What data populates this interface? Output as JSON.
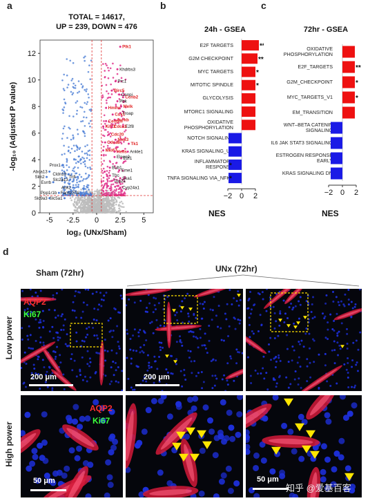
{
  "panels": {
    "a": {
      "letter": "a"
    },
    "b": {
      "letter": "b"
    },
    "c": {
      "letter": "c"
    },
    "d": {
      "letter": "d"
    }
  },
  "volcano": {
    "title_line1": "TOTAL = 14617,",
    "title_line2": "UP = 239, DOWN = 476",
    "xlabel": "log₂ (UNx/Sham)",
    "ylabel": "-log₁₀ (Adjusted P value)",
    "x_ticks": [
      "-5",
      "-2.5",
      "0",
      "2.5",
      "5"
    ],
    "y_ticks": [
      "0",
      "2",
      "4",
      "6",
      "8",
      "10",
      "12"
    ],
    "up_genes": [
      "Plk1",
      "Birc5",
      "Ccnb2",
      "Melk",
      "Hmmr",
      "Cdk1",
      "Aurkb",
      "Cenpm",
      "Kif22",
      "Cdca3",
      "Cdc20",
      "Mxd3",
      "Cdca8",
      "Mki67",
      "Hells",
      "Tk1"
    ],
    "other_genes": [
      "Khdrbs3",
      "Prc1",
      "Cenpi",
      "Pbk",
      "Troap",
      "E2f8",
      "Ankle1",
      "Eleco2",
      "E2f1",
      "Bub1",
      "Eme1",
      "Tfrc",
      "Ska1",
      "Top2a",
      "Cyp24a1"
    ],
    "down_genes": [
      "Prox1",
      "Abca13",
      "Slm2",
      "Cldn10",
      "Esrrb",
      "Slc2a13",
      "Ank2",
      "Ppp1r1b",
      "Fam107a",
      "Slc9a3",
      "Slc5a1",
      "Tnfi"
    ]
  },
  "gsea24": {
    "title": "24h - GSEA",
    "xlabel": "NES",
    "ticks": [
      "−2",
      "0",
      "2"
    ]
  },
  "gsea72": {
    "title": "72hr - GSEA",
    "xlabel": "NES",
    "ticks": [
      "−2",
      "0",
      "2"
    ]
  },
  "micro": {
    "sham_label": "Sham (72hr)",
    "unx_label": "UNx (72hr)",
    "row_low": "Low power",
    "row_high": "High power",
    "aqp2": "AQP2",
    "ki67": "Ki67",
    "scale_200": "200 μm",
    "scale_50": "50 μm",
    "watermark": "知乎 @爱基百客"
  },
  "chart_data": [
    {
      "type": "scatter",
      "title": "TOTAL = 14617, UP = 239, DOWN = 476",
      "xlabel": "log₂ (UNx/Sham)",
      "ylabel": "-log₁₀ (Adjusted P value)",
      "xlim": [
        -6,
        6
      ],
      "ylim": [
        0,
        13
      ],
      "thresholds": {
        "x": [
          -0.5,
          0.5
        ],
        "y": 1.3
      },
      "colors": {
        "up": "#e0338c",
        "down": "#4e7fd6",
        "ns": "#bdbdbd",
        "label_up": "#e02020",
        "threshold": "#e03030"
      },
      "labeled_points": [
        {
          "gene": "Plk1",
          "x": 2.5,
          "y": 12.5,
          "group": "up"
        },
        {
          "gene": "Khdrbs3",
          "x": 2.2,
          "y": 10.8,
          "group": "other"
        },
        {
          "gene": "Prc1",
          "x": 2.0,
          "y": 9.9,
          "group": "other"
        },
        {
          "gene": "Birc5",
          "x": 1.6,
          "y": 9.2,
          "group": "up"
        },
        {
          "gene": "Cenpi",
          "x": 2.4,
          "y": 8.9,
          "group": "other"
        },
        {
          "gene": "Ccnb2",
          "x": 2.8,
          "y": 8.7,
          "group": "up"
        },
        {
          "gene": "Pbk",
          "x": 2.2,
          "y": 8.4,
          "group": "other"
        },
        {
          "gene": "Melk",
          "x": 2.6,
          "y": 8.0,
          "group": "up"
        },
        {
          "gene": "Hmmr",
          "x": 1.0,
          "y": 7.9,
          "group": "up"
        },
        {
          "gene": "Cdk1",
          "x": 1.7,
          "y": 7.4,
          "group": "up"
        },
        {
          "gene": "Troap",
          "x": 2.5,
          "y": 7.5,
          "group": "other"
        },
        {
          "gene": "Aurkb",
          "x": 1.9,
          "y": 7.0,
          "group": "up"
        },
        {
          "gene": "Cenpm",
          "x": 1.0,
          "y": 6.9,
          "group": "up"
        },
        {
          "gene": "E2f8",
          "x": 2.8,
          "y": 6.5,
          "group": "other"
        },
        {
          "gene": "Kif22",
          "x": 0.7,
          "y": 6.5,
          "group": "up"
        },
        {
          "gene": "Cdca3",
          "x": 1.6,
          "y": 6.5,
          "group": "up"
        },
        {
          "gene": "Cdc20",
          "x": 1.3,
          "y": 5.9,
          "group": "up"
        },
        {
          "gene": "Mxd3",
          "x": 2.0,
          "y": 5.5,
          "group": "up"
        },
        {
          "gene": "Cdca8",
          "x": 0.9,
          "y": 5.3,
          "group": "up"
        },
        {
          "gene": "Mki67",
          "x": 0.7,
          "y": 4.7,
          "group": "up"
        },
        {
          "gene": "Hells",
          "x": 1.9,
          "y": 4.6,
          "group": "up"
        },
        {
          "gene": "Ankle1",
          "x": 3.3,
          "y": 4.6,
          "group": "other"
        },
        {
          "gene": "Eleco2",
          "x": 1.9,
          "y": 4.2,
          "group": "other"
        },
        {
          "gene": "Tk1",
          "x": 3.4,
          "y": 5.2,
          "group": "up"
        },
        {
          "gene": "E2f1",
          "x": 2.6,
          "y": 4.1,
          "group": "other"
        },
        {
          "gene": "Bub1",
          "x": 1.4,
          "y": 3.4,
          "group": "other"
        },
        {
          "gene": "Eme1",
          "x": 2.4,
          "y": 3.2,
          "group": "other"
        },
        {
          "gene": "Tfrc",
          "x": 1.4,
          "y": 2.8,
          "group": "other"
        },
        {
          "gene": "Ska1",
          "x": 2.5,
          "y": 2.6,
          "group": "other"
        },
        {
          "gene": "Top2a",
          "x": 1.6,
          "y": 2.4,
          "group": "other"
        },
        {
          "gene": "Cyp24a1",
          "x": 2.5,
          "y": 1.9,
          "group": "other"
        },
        {
          "gene": "Prox1",
          "x": -3.6,
          "y": 3.6,
          "group": "down"
        },
        {
          "gene": "Abca13",
          "x": -5.0,
          "y": 3.1,
          "group": "down"
        },
        {
          "gene": "Slm2",
          "x": -5.3,
          "y": 2.7,
          "group": "down"
        },
        {
          "gene": "Cldn10",
          "x": -3.0,
          "y": 2.9,
          "group": "down"
        },
        {
          "gene": "Tnfi",
          "x": -2.0,
          "y": 2.7,
          "group": "down"
        },
        {
          "gene": "Esrrb",
          "x": -4.6,
          "y": 2.3,
          "group": "down"
        },
        {
          "gene": "Slc2a13",
          "x": -2.8,
          "y": 2.5,
          "group": "down"
        },
        {
          "gene": "Ank2",
          "x": -2.5,
          "y": 1.9,
          "group": "down"
        },
        {
          "gene": "Ppp1r1b",
          "x": -4.0,
          "y": 1.5,
          "group": "down"
        },
        {
          "gene": "Fam107a",
          "x": -1.7,
          "y": 1.5,
          "group": "down"
        },
        {
          "gene": "Slc9a3",
          "x": -5.0,
          "y": 1.1,
          "group": "down"
        },
        {
          "gene": "Slc5a1",
          "x": -3.4,
          "y": 1.1,
          "group": "down"
        }
      ]
    },
    {
      "type": "bar",
      "orientation": "horizontal",
      "title": "24h - GSEA",
      "xlabel": "NES",
      "xlim": [
        -3,
        3
      ],
      "ticks": [
        -2,
        0,
        2
      ],
      "categories": [
        "E2F TARGETS",
        "G2M CHECKPOINT",
        "MYC TARGETS",
        "MITOTIC SPINDLE",
        "GLYCOLYSIS",
        "MTORC1 SIGNALING",
        "OXIDATIVE PHOSPHORYLATION",
        "NOTCH SIGNALING",
        "KRAS SIGNALING_UP",
        "INFLAMMATORY RESPONSE",
        "TNFA SIGNALING VIA_NFKB"
      ],
      "values": [
        2.5,
        2.3,
        2.0,
        2.0,
        2.0,
        2.0,
        2.0,
        -1.9,
        -1.9,
        -1.9,
        -1.9
      ],
      "significance": [
        "***",
        "**",
        "*",
        "*",
        "",
        "",
        "",
        "",
        "",
        "*",
        "*"
      ],
      "colors": {
        "positive": "#ee1111",
        "negative": "#1a1ae6"
      }
    },
    {
      "type": "bar",
      "orientation": "horizontal",
      "title": "72hr - GSEA",
      "xlabel": "NES",
      "xlim": [
        -3,
        3
      ],
      "ticks": [
        -2,
        0,
        2
      ],
      "categories": [
        "OXIDATIVE PHOSPHORYLATION",
        "E2F_TARGETS",
        "G2M_CHECKPOINT",
        "MYC_TARGETS_V1",
        "EM_TRANSITION",
        "WNT–BETA CATENIN SIGNALING",
        "IL6 JAK STAT3 SIGNALING",
        "ESTROGEN RESPONSE EARLY",
        "KRAS SIGNALING DN"
      ],
      "values": [
        1.8,
        1.8,
        1.8,
        1.8,
        1.8,
        -1.7,
        -1.7,
        -1.7,
        -1.7
      ],
      "significance": [
        "",
        "**",
        "*",
        "*",
        "",
        "",
        "",
        "",
        ""
      ],
      "colors": {
        "positive": "#ee1111",
        "negative": "#1a1ae6"
      }
    }
  ]
}
